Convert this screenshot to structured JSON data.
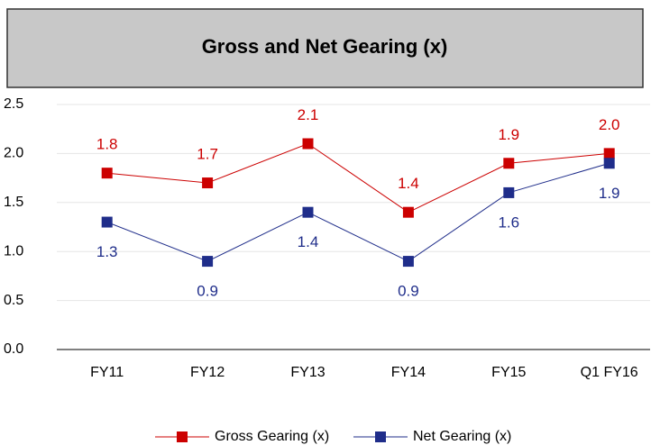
{
  "chart_data": {
    "type": "line",
    "title": "Gross and Net Gearing (x)",
    "categories": [
      "FY11",
      "FY12",
      "FY13",
      "FY14",
      "FY15",
      "Q1 FY16"
    ],
    "series": [
      {
        "name": "Gross Gearing (x)",
        "color": "#cc0000",
        "values": [
          1.8,
          1.7,
          2.1,
          1.4,
          1.9,
          2.0
        ],
        "value_labels": [
          "1.8",
          "1.7",
          "2.1",
          "1.4",
          "1.9",
          "2.0"
        ]
      },
      {
        "name": "Net Gearing (x)",
        "color": "#1f2d8a",
        "values": [
          1.3,
          0.9,
          1.4,
          0.9,
          1.6,
          1.9
        ],
        "value_labels": [
          "1.3",
          "0.9",
          "1.4",
          "0.9",
          "1.6",
          "1.9"
        ]
      }
    ],
    "ylim": [
      0,
      2.5
    ],
    "yticks": [
      {
        "value": 0,
        "label": "0.0"
      },
      0.5,
      {
        "value": 1,
        "label": "1.0"
      },
      1.5,
      {
        "value": 2,
        "label": "2.0"
      },
      2.5
    ],
    "grid": true,
    "legend": "bottom"
  }
}
